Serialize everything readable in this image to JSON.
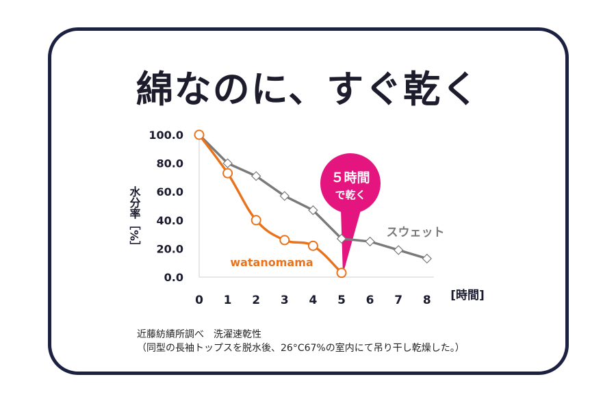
{
  "title": "綿なのに、すぐ乾く",
  "notes": {
    "source": "近藤紡績所調べ　洗濯速乾性",
    "condition": "（同型の長袖トップスを脱水後、26°C67%の室内にて吊り干し乾燥した。）"
  },
  "colors": {
    "frame": "#1c2142",
    "watanomama": "#e8731c",
    "sweat": "#7a7a7a",
    "callout": "#e5157f"
  },
  "chart_data": {
    "type": "line",
    "ylabel": "水分率［%］",
    "xlabel": "[時間]",
    "ylim": [
      0,
      100
    ],
    "yticks": [
      "100.0",
      "80.0",
      "60.0",
      "40.0",
      "20.0",
      "0.0"
    ],
    "x": [
      0,
      1,
      2,
      3,
      4,
      5,
      6,
      7,
      8
    ],
    "grid": false,
    "series": [
      {
        "name": "watanomama",
        "x": [
          0,
          1,
          2,
          3,
          4,
          5
        ],
        "values": [
          100,
          73,
          40,
          26,
          22,
          3
        ],
        "marker": "circle"
      },
      {
        "name": "スウェット",
        "x": [
          0,
          1,
          2,
          3,
          4,
          5,
          6,
          7,
          8
        ],
        "values": [
          100,
          80,
          71,
          57,
          47,
          27,
          25,
          19,
          13
        ],
        "marker": "diamond"
      }
    ],
    "callout": {
      "line1": "５時間",
      "line2": "で乾く",
      "x": 5
    }
  }
}
